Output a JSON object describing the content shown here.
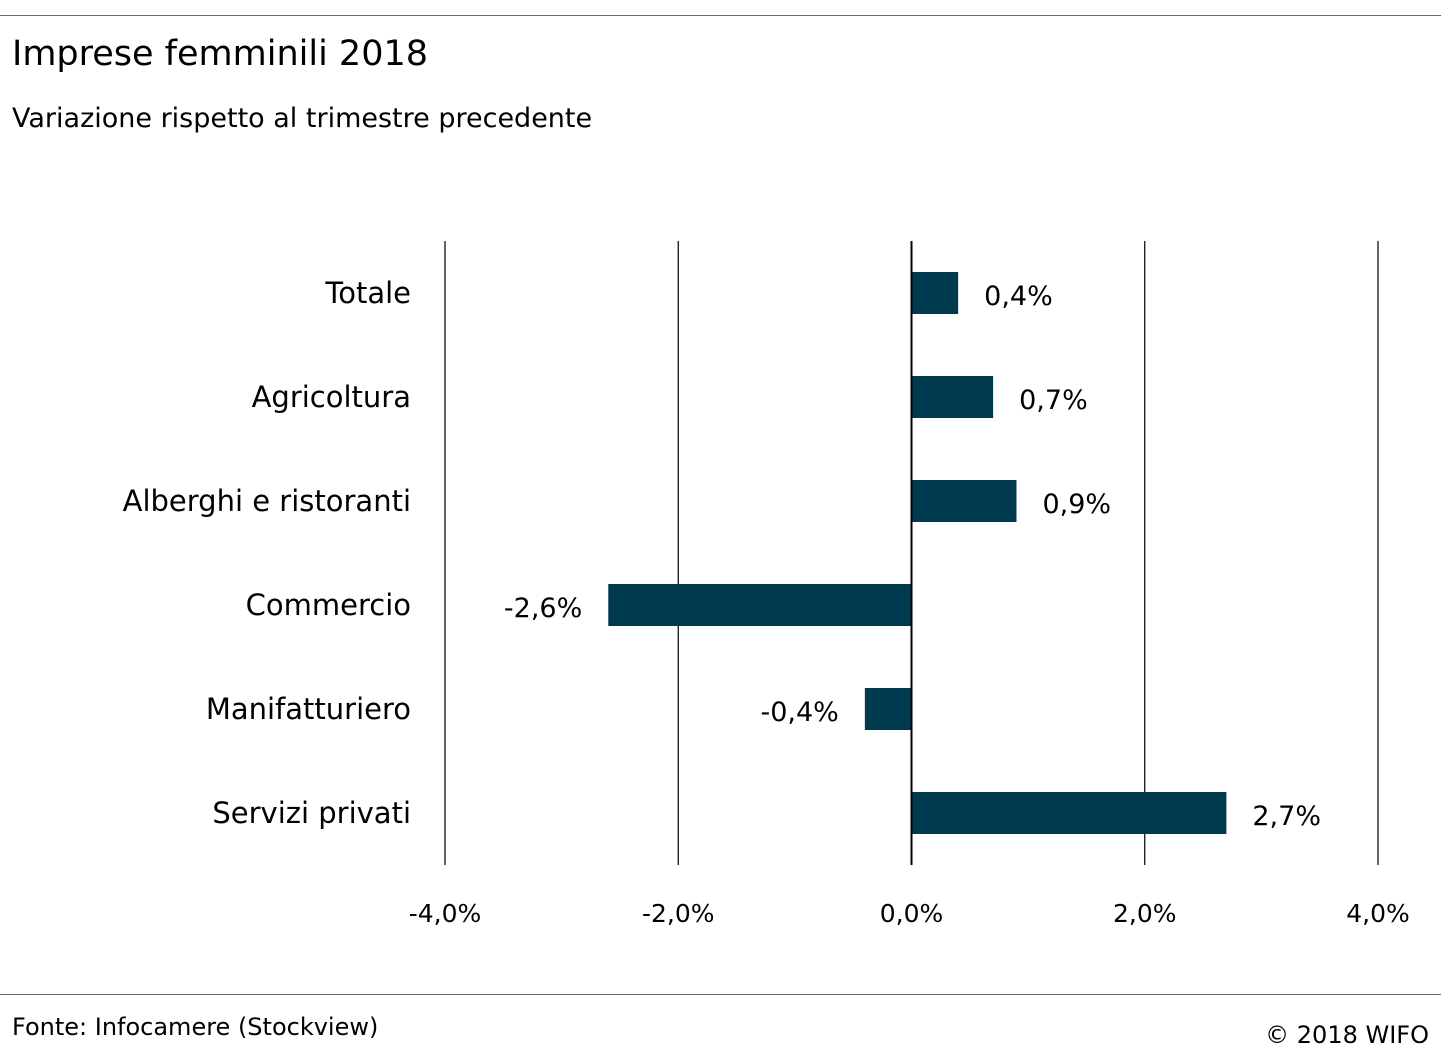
{
  "header": {
    "title": "Imprese femminili 2018",
    "subtitle": "Variazione rispetto al trimestre precedente"
  },
  "footer": {
    "source": "Fonte: Infocamere (Stockview)",
    "copyright": "© 2018 WIFO"
  },
  "colors": {
    "bar": "#003a4f",
    "grid": "#000000"
  },
  "chart_data": {
    "type": "bar",
    "orientation": "horizontal",
    "categories": [
      "Totale",
      "Agricoltura",
      "Alberghi e ristoranti",
      "Commercio",
      "Manifatturiero",
      "Servizi privati"
    ],
    "values": [
      0.4,
      0.7,
      0.9,
      -2.6,
      -0.4,
      2.7
    ],
    "value_labels": [
      "0,4%",
      "0,7%",
      "0,9%",
      "-2,6%",
      "-0,4%",
      "2,7%"
    ],
    "xlim": [
      -4,
      4
    ],
    "x_ticks": [
      -4,
      -2,
      0,
      2,
      4
    ],
    "x_tick_labels": [
      "-4,0%",
      "-2,0%",
      "0,0%",
      "2,0%",
      "4,0%"
    ],
    "grid": true,
    "legend": false
  }
}
